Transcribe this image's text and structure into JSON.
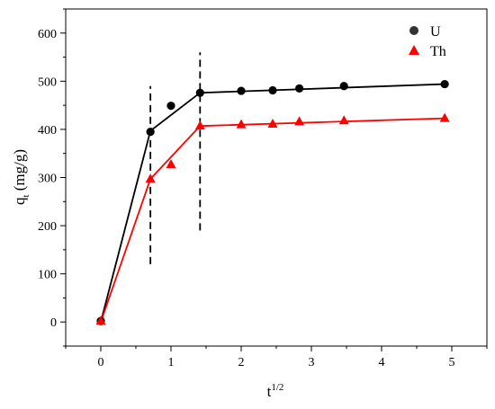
{
  "chart_data": {
    "type": "scatter",
    "title": "",
    "xlabel": {
      "base": "t",
      "sup": "1/2"
    },
    "ylabel": {
      "base": "q",
      "sub": "t",
      "rest": " (mg/g)"
    },
    "xlim": [
      -0.5,
      5.5
    ],
    "ylim": [
      -50,
      650
    ],
    "xticks": [
      0,
      1,
      2,
      3,
      4,
      5
    ],
    "yticks": [
      0,
      100,
      200,
      300,
      400,
      500,
      600
    ],
    "grid": false,
    "legend_position": "top-right",
    "series": [
      {
        "name": "U",
        "marker": "circle",
        "color": "#000000",
        "marker_color": "#000000",
        "x": [
          0,
          0.707,
          1.0,
          1.414,
          2.0,
          2.449,
          2.828,
          3.464,
          4.899
        ],
        "y": [
          2,
          395,
          449,
          476,
          480,
          481,
          485,
          490,
          494
        ],
        "fit": {
          "x": [
            0,
            0.707,
            1.414,
            4.899
          ],
          "y": [
            0,
            397,
            476,
            494
          ]
        }
      },
      {
        "name": "Th",
        "marker": "triangle",
        "color": "#ff0000",
        "marker_color": "#ff0000",
        "x": [
          0,
          0.707,
          1.0,
          1.414,
          2.0,
          2.449,
          2.828,
          3.464,
          4.899
        ],
        "y": [
          2,
          297,
          327,
          407,
          410,
          411,
          416,
          418,
          423
        ],
        "fit": {
          "x": [
            0,
            0.707,
            1.414,
            4.899
          ],
          "y": [
            0,
            297,
            407,
            423
          ]
        }
      }
    ],
    "annotations": [
      {
        "type": "vline",
        "style": "dashed",
        "x": 0.707,
        "y_from": 120,
        "y_to": 490
      },
      {
        "type": "vline",
        "style": "dashed",
        "x": 1.414,
        "y_from": 190,
        "y_to": 560
      }
    ]
  }
}
